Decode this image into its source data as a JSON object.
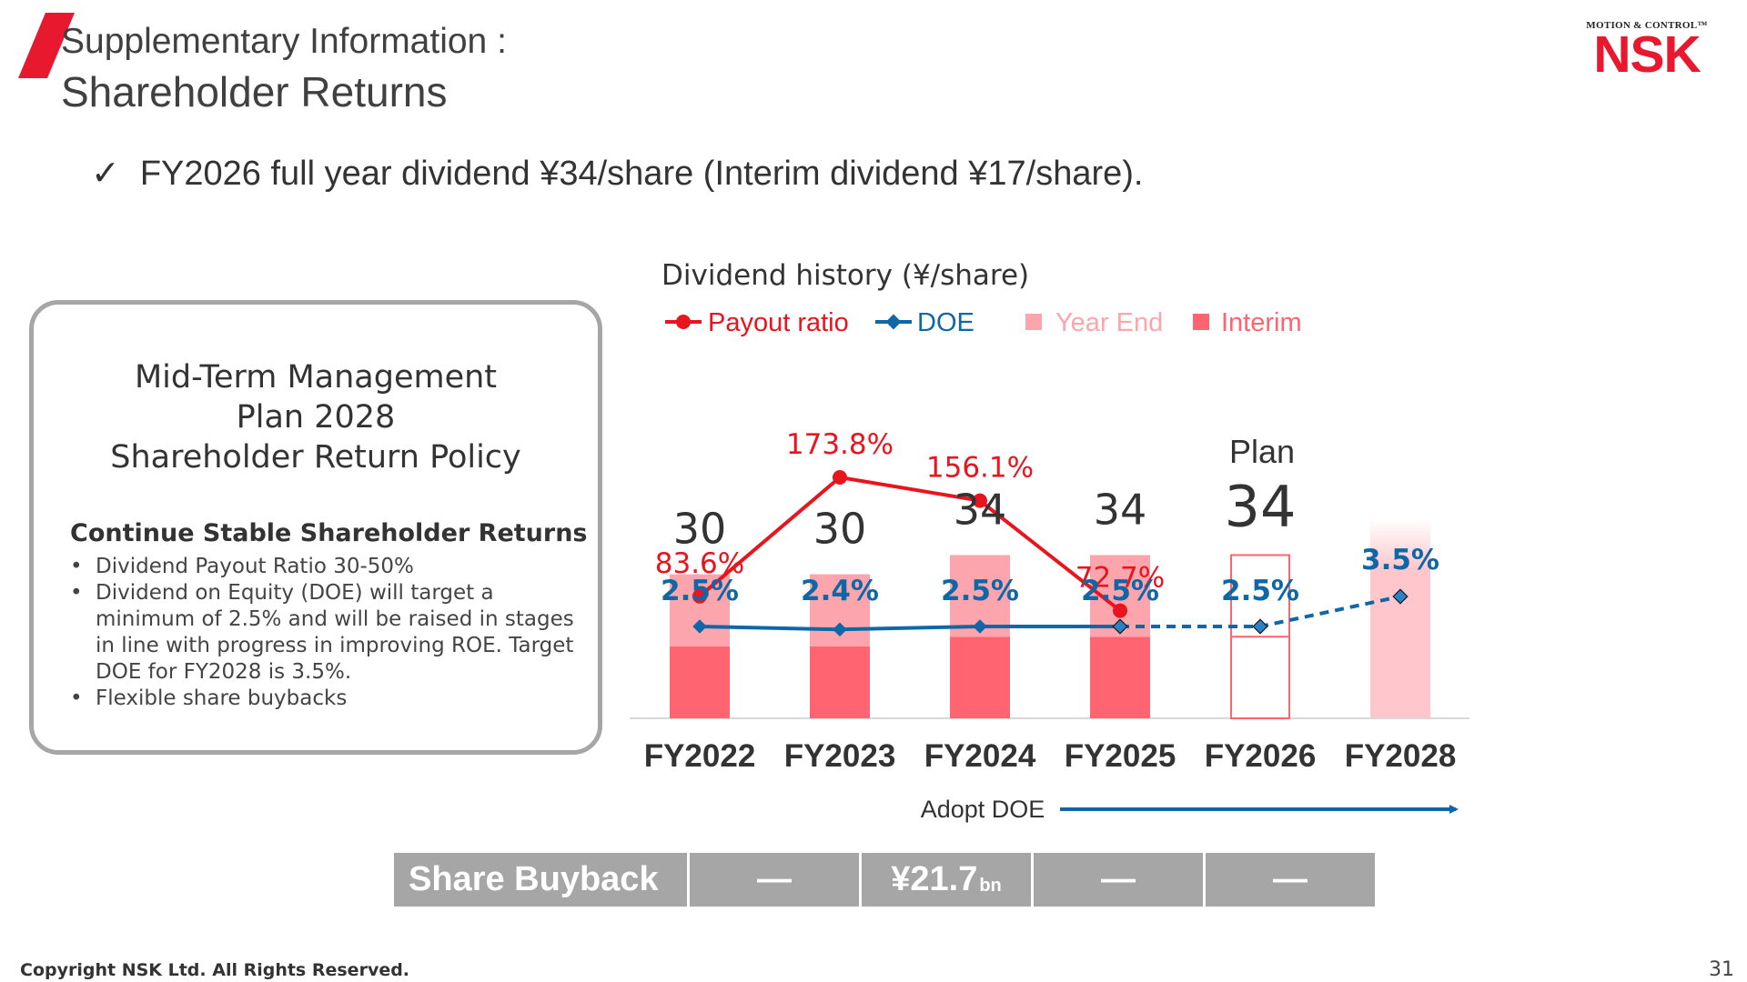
{
  "header": {
    "subtitle": "Supplementary Information :",
    "title": "Shareholder Returns"
  },
  "logo": {
    "tagline": "MOTION & CONTROL™",
    "name": "NSK"
  },
  "bullet": {
    "check": "✓",
    "text": "FY2026 full year dividend ¥34/share (Interim dividend  ¥17/share)."
  },
  "policy": {
    "title_lines": [
      "Mid-Term Management",
      "Plan 2028",
      "Shareholder Return Policy"
    ],
    "subtitle": "Continue Stable Shareholder Returns",
    "items": [
      "Dividend Payout Ratio 30-50%",
      "Dividend on Equity (DOE) will target a minimum of 2.5% and will be raised in stages in line with progress in improving ROE. Target DOE for FY2028 is 3.5%.",
      "Flexible share buybacks"
    ]
  },
  "colors": {
    "interim": "#ff6470",
    "year_end": "#fda5ac",
    "payout": "#e8141e",
    "doe": "#0e67a6",
    "plan_fade": "#ffc7cc",
    "buyback_bg": "#a6a6a6"
  },
  "chart_data": {
    "type": "bar",
    "title": "Dividend history (¥/share)",
    "legend": [
      "Payout ratio",
      "DOE",
      "Year End",
      "Interim"
    ],
    "legend_position": "top",
    "categories": [
      "FY2022",
      "FY2023",
      "FY2024",
      "FY2025",
      "FY2026",
      "FY2028"
    ],
    "totals": [
      30,
      30,
      34,
      34,
      34,
      null
    ],
    "total_labels": [
      "30",
      "30",
      "34",
      "34",
      "34",
      ""
    ],
    "plan_label": "Plan",
    "series": [
      {
        "name": "Interim",
        "values": [
          15,
          15,
          17,
          17,
          17,
          null
        ]
      },
      {
        "name": "Year End",
        "values": [
          15,
          15,
          17,
          17,
          17,
          null
        ]
      }
    ],
    "payout_ratio": {
      "name": "Payout ratio",
      "values": [
        83.6,
        173.8,
        156.1,
        72.7,
        null,
        null
      ],
      "labels": [
        "83.6%",
        "173.8%",
        "156.1%",
        "72.7%",
        "",
        ""
      ]
    },
    "doe": {
      "name": "DOE",
      "values": [
        2.5,
        2.4,
        2.5,
        2.5,
        2.5,
        3.5
      ],
      "labels": [
        "2.5%",
        "2.4%",
        "2.5%",
        "2.5%",
        "2.5%",
        "3.5%"
      ]
    },
    "annotation": "Adopt DOE",
    "grid": false
  },
  "buyback": {
    "label": "Share Buyback",
    "cells": [
      {
        "value": "—",
        "unit": ""
      },
      {
        "value": "¥21.7",
        "unit": "bn"
      },
      {
        "value": "—",
        "unit": ""
      },
      {
        "value": "—",
        "unit": ""
      }
    ]
  },
  "footer": {
    "copyright": "Copyright NSK Ltd. All Rights Reserved.",
    "page": "31"
  }
}
